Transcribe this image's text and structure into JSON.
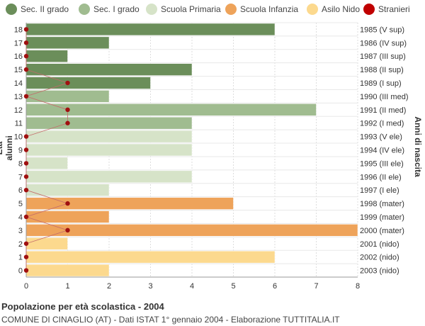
{
  "chart_data": {
    "type": "bar",
    "orientation": "horizontal",
    "title": "Popolazione per età scolastica - 2004",
    "subtitle": "COMUNE DI CINAGLIO (AT) - Dati ISTAT 1° gennaio 2004 - Elaborazione TUTTITALIA.IT",
    "ylabel": "Età alunni",
    "ylabel_right": "Anni di nascita",
    "xlim": [
      0,
      8
    ],
    "x_ticks": [
      "0",
      "1",
      "2",
      "3",
      "4",
      "5",
      "6",
      "7",
      "8"
    ],
    "grid": true,
    "legend_position": "top",
    "legend": [
      {
        "name": "Sec. II grado",
        "color": "#6b8e5a"
      },
      {
        "name": "Sec. I grado",
        "color": "#a0bc90"
      },
      {
        "name": "Scuola Primaria",
        "color": "#d6e3c8"
      },
      {
        "name": "Scuola Infanzia",
        "color": "#eea35a"
      },
      {
        "name": "Asilo Nido",
        "color": "#fcd98e"
      },
      {
        "name": "Stranieri",
        "color": "#c00000"
      }
    ],
    "ages": [
      "18",
      "17",
      "16",
      "15",
      "14",
      "13",
      "12",
      "11",
      "10",
      "9",
      "8",
      "7",
      "6",
      "5",
      "4",
      "3",
      "2",
      "1",
      "0"
    ],
    "birth_years": [
      "1985 (V sup)",
      "1986 (IV sup)",
      "1987 (III sup)",
      "1988 (II sup)",
      "1989 (I sup)",
      "1990 (III med)",
      "1991 (II med)",
      "1992 (I med)",
      "1993 (V ele)",
      "1994 (IV ele)",
      "1995 (III ele)",
      "1996 (II ele)",
      "1997 (I ele)",
      "1998 (mater)",
      "1999 (mater)",
      "2000 (mater)",
      "2001 (nido)",
      "2002 (nido)",
      "2003 (nido)"
    ],
    "values": [
      6,
      2,
      1,
      4,
      3,
      2,
      7,
      4,
      4,
      4,
      1,
      4,
      2,
      5,
      2,
      8,
      1,
      6,
      2
    ],
    "groups": [
      "Sec. II grado",
      "Sec. II grado",
      "Sec. II grado",
      "Sec. II grado",
      "Sec. II grado",
      "Sec. I grado",
      "Sec. I grado",
      "Sec. I grado",
      "Scuola Primaria",
      "Scuola Primaria",
      "Scuola Primaria",
      "Scuola Primaria",
      "Scuola Primaria",
      "Scuola Infanzia",
      "Scuola Infanzia",
      "Scuola Infanzia",
      "Asilo Nido",
      "Asilo Nido",
      "Asilo Nido"
    ],
    "stranieri": [
      0,
      0,
      0,
      0,
      1,
      0,
      1,
      1,
      0,
      0,
      0,
      0,
      0,
      1,
      0,
      1,
      0,
      0,
      0
    ]
  }
}
